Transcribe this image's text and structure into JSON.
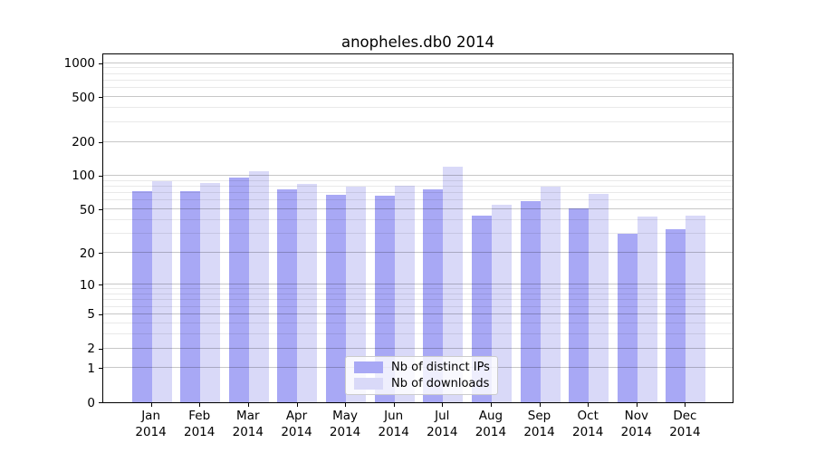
{
  "figure": {
    "title": "anopheles.db0 2014"
  },
  "legend": {
    "items": [
      {
        "label": "Nb of distinct IPs",
        "color": "#a8a8f5"
      },
      {
        "label": "Nb of downloads",
        "color": "#d9d9f8"
      }
    ]
  },
  "chart_data": {
    "type": "bar",
    "title": "anopheles.db0 2014",
    "categories": [
      "Jan",
      "Feb",
      "Mar",
      "Apr",
      "May",
      "Jun",
      "Jul",
      "Aug",
      "Sep",
      "Oct",
      "Nov",
      "Dec"
    ],
    "category_year": "2014",
    "series": [
      {
        "key": "distinct-ips",
        "name": "Nb of distinct IPs",
        "color": "#a8a8f5",
        "values": [
          73,
          73,
          96,
          75,
          68,
          66,
          76,
          44,
          59,
          51,
          30,
          33
        ]
      },
      {
        "key": "downloads",
        "name": "Nb of downloads",
        "color": "#d9d9f8",
        "values": [
          89,
          86,
          109,
          85,
          80,
          82,
          120,
          55,
          80,
          69,
          43,
          44
        ]
      }
    ],
    "xlabel": "",
    "ylabel": "",
    "yscale": "log1p",
    "ylim": [
      0,
      1240
    ],
    "yticks": [
      0,
      1,
      2,
      5,
      10,
      20,
      50,
      100,
      200,
      500,
      1000
    ],
    "yticks_minor": [
      3,
      4,
      6,
      7,
      8,
      9,
      30,
      40,
      60,
      70,
      80,
      90,
      300,
      400,
      600,
      700,
      800,
      900
    ],
    "grid": true,
    "legend_position": "lower center"
  }
}
